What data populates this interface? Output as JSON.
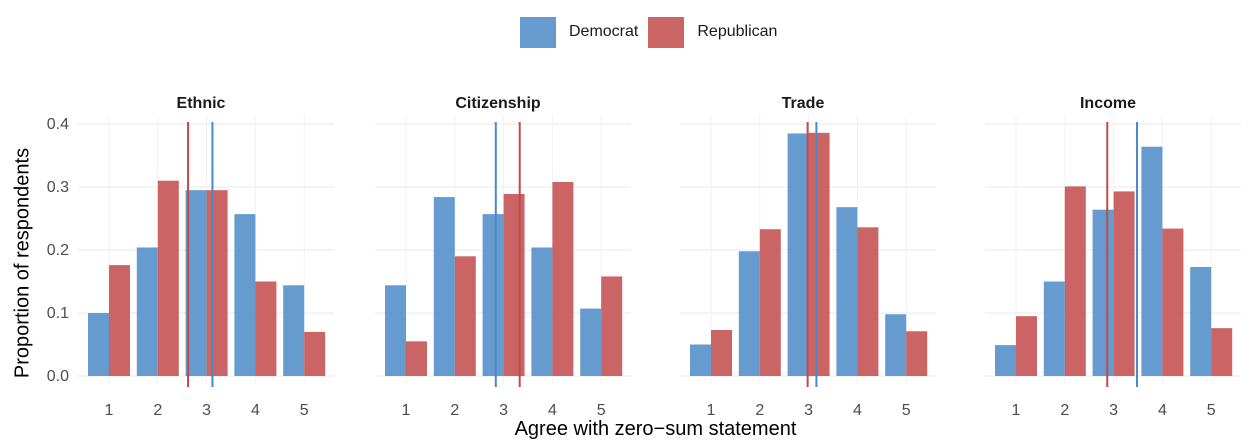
{
  "legend": {
    "items": [
      {
        "label": "Democrat",
        "color": "#4a89c7"
      },
      {
        "label": "Republican",
        "color": "#c24a4a"
      }
    ]
  },
  "axes": {
    "xlabel": "Agree with zero−sum statement",
    "ylabel": "Proportion of respondents"
  },
  "chart_data": {
    "type": "bar",
    "categories": [
      "1",
      "2",
      "3",
      "4",
      "5"
    ],
    "ylim": [
      0,
      0.4
    ],
    "yticks": [
      "0.0",
      "0.1",
      "0.2",
      "0.3",
      "0.4"
    ],
    "grid": true,
    "legend_position": "top",
    "panels": [
      {
        "title": "Ethnic",
        "series": [
          {
            "name": "Democrat",
            "values": [
              0.1,
              0.204,
              0.295,
              0.257,
              0.144
            ],
            "mean": 3.12
          },
          {
            "name": "Republican",
            "values": [
              0.176,
              0.31,
              0.295,
              0.15,
              0.07
            ],
            "mean": 2.62
          }
        ]
      },
      {
        "title": "Citizenship",
        "series": [
          {
            "name": "Democrat",
            "values": [
              0.144,
              0.284,
              0.257,
              0.204,
              0.107
            ],
            "mean": 2.84
          },
          {
            "name": "Republican",
            "values": [
              0.055,
              0.19,
              0.289,
              0.308,
              0.158
            ],
            "mean": 3.33
          }
        ]
      },
      {
        "title": "Trade",
        "series": [
          {
            "name": "Democrat",
            "values": [
              0.05,
              0.198,
              0.385,
              0.268,
              0.098
            ],
            "mean": 3.16
          },
          {
            "name": "Republican",
            "values": [
              0.073,
              0.233,
              0.386,
              0.236,
              0.071
            ],
            "mean": 2.98
          }
        ]
      },
      {
        "title": "Income",
        "series": [
          {
            "name": "Democrat",
            "values": [
              0.049,
              0.15,
              0.264,
              0.364,
              0.173
            ],
            "mean": 3.48
          },
          {
            "name": "Republican",
            "values": [
              0.095,
              0.301,
              0.293,
              0.234,
              0.076
            ],
            "mean": 2.87
          }
        ]
      }
    ]
  }
}
